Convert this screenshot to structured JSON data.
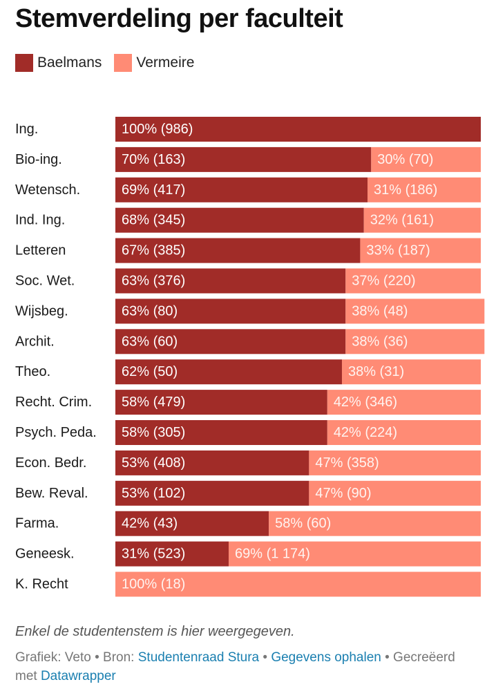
{
  "chart_data": {
    "type": "bar",
    "orientation": "horizontal",
    "stacked": true,
    "normalized_percent": true,
    "title": "Stemverdeling per faculteit",
    "xlim": [
      0,
      100
    ],
    "grid": false,
    "legend_position": "top-left",
    "categories": [
      "Ing.",
      "Bio-ing.",
      "Wetensch.",
      "Ind. Ing.",
      "Letteren",
      "Soc. Wet.",
      "Wijsbeg.",
      "Archit.",
      "Theo.",
      "Recht. Crim.",
      "Psych. Peda.",
      "Econ. Bedr.",
      "Bew. Reval.",
      "Farma.",
      "Geneesk.",
      "K. Recht"
    ],
    "series": [
      {
        "name": "Baelmans",
        "color": "#a12c28",
        "values": [
          100,
          70,
          69,
          68,
          67,
          63,
          63,
          63,
          62,
          58,
          58,
          53,
          53,
          42,
          31,
          0
        ],
        "labels": [
          "100% (986)",
          "70% (163)",
          "69% (417)",
          "68% (345)",
          "67% (385)",
          "63% (376)",
          "63% (80)",
          "63% (60)",
          "62% (50)",
          "58% (479)",
          "58% (305)",
          "53% (408)",
          "53% (102)",
          "42% (43)",
          "31% (523)",
          ""
        ]
      },
      {
        "name": "Vermeire",
        "color": "#ff8b75",
        "values": [
          0,
          30,
          31,
          32,
          33,
          37,
          38,
          38,
          38,
          42,
          42,
          47,
          47,
          58,
          69,
          100
        ],
        "labels": [
          "",
          "30% (70)",
          "31% (186)",
          "32% (161)",
          "33% (187)",
          "37% (220)",
          "38% (48)",
          "38% (36)",
          "38% (31)",
          "42% (346)",
          "42% (224)",
          "47% (358)",
          "47% (90)",
          "58% (60)",
          "69% (1 174)",
          "100% (18)"
        ]
      }
    ]
  },
  "note": "Enkel de studentenstem is hier weergegeven.",
  "footer": {
    "prefix": "Grafiek: Veto • Bron: ",
    "source_link": "Studentenraad Stura",
    "sep1": " • ",
    "data_link": "Gegevens ophalen",
    "sep2": " • Gecreëerd met ",
    "tool_link": "Datawrapper"
  }
}
